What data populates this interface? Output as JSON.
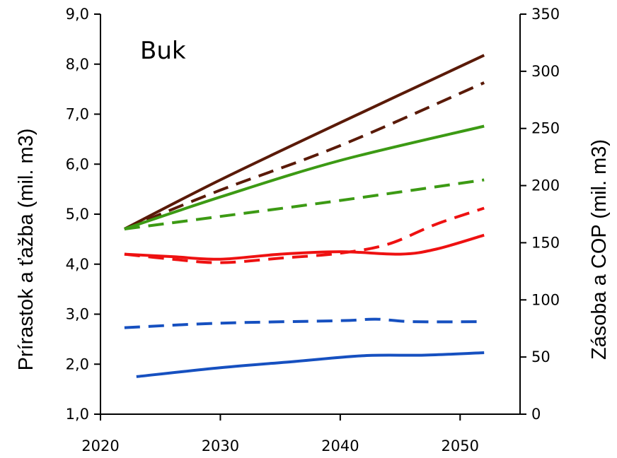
{
  "chart_data": {
    "type": "line",
    "title": "Buk",
    "xlabel": "",
    "ylabel_left": "Prírastok a ťažba (mil. m3)",
    "ylabel_right": "Zásoba a COP (mil. m3)",
    "xlim": [
      2020,
      2055
    ],
    "ylim_left": [
      1.0,
      9.0
    ],
    "ylim_right": [
      0,
      350
    ],
    "x_ticks": [
      2020,
      2030,
      2040,
      2050
    ],
    "x_tick_labels": [
      "2020",
      "2030",
      "2040",
      "2050"
    ],
    "y_left_ticks": [
      1.0,
      2.0,
      3.0,
      4.0,
      5.0,
      6.0,
      7.0,
      8.0,
      9.0
    ],
    "y_left_tick_labels": [
      "1,0",
      "2,0",
      "3,0",
      "4,0",
      "5,0",
      "6,0",
      "7,0",
      "8,0",
      "9,0"
    ],
    "y_right_ticks": [
      0,
      50,
      100,
      150,
      200,
      250,
      300,
      350
    ],
    "y_right_tick_labels": [
      "0",
      "50",
      "100",
      "150",
      "200",
      "250",
      "300",
      "350"
    ],
    "grid": false,
    "legend": "none",
    "series": [
      {
        "color": "#5a1a08",
        "style": "solid",
        "axis": "right",
        "x": [
          2022,
          2030,
          2040,
          2052
        ],
        "y": [
          162,
          205,
          255,
          314
        ]
      },
      {
        "color": "#5a1a08",
        "style": "dashed",
        "axis": "right",
        "x": [
          2022,
          2030,
          2040,
          2052
        ],
        "y": [
          162,
          196,
          235,
          290
        ]
      },
      {
        "color": "#3c9a14",
        "style": "solid",
        "axis": "right",
        "x": [
          2022,
          2030,
          2040,
          2052
        ],
        "y": [
          162,
          190,
          222,
          252
        ]
      },
      {
        "color": "#3c9a14",
        "style": "dashed",
        "axis": "right",
        "x": [
          2022,
          2030,
          2040,
          2052
        ],
        "y": [
          162,
          173,
          187,
          205
        ]
      },
      {
        "color": "#ee1111",
        "style": "solid",
        "axis": "left",
        "x": [
          2022,
          2026,
          2030,
          2035,
          2040,
          2045,
          2048,
          2052
        ],
        "y": [
          4.2,
          4.15,
          4.1,
          4.2,
          4.25,
          4.2,
          4.3,
          4.58
        ]
      },
      {
        "color": "#ee1111",
        "style": "dashed",
        "axis": "left",
        "x": [
          2022,
          2026,
          2030,
          2035,
          2040,
          2044,
          2048,
          2052
        ],
        "y": [
          4.2,
          4.1,
          4.03,
          4.12,
          4.22,
          4.4,
          4.8,
          5.12
        ]
      },
      {
        "color": "#1650c0",
        "style": "dashed",
        "axis": "left",
        "x": [
          2022,
          2030,
          2040,
          2043,
          2046,
          2052
        ],
        "y": [
          2.73,
          2.82,
          2.87,
          2.9,
          2.85,
          2.85
        ]
      },
      {
        "color": "#1650c0",
        "style": "solid",
        "axis": "left",
        "x": [
          2023,
          2030,
          2036,
          2042,
          2047,
          2052
        ],
        "y": [
          1.75,
          1.93,
          2.05,
          2.17,
          2.18,
          2.23
        ]
      }
    ]
  }
}
